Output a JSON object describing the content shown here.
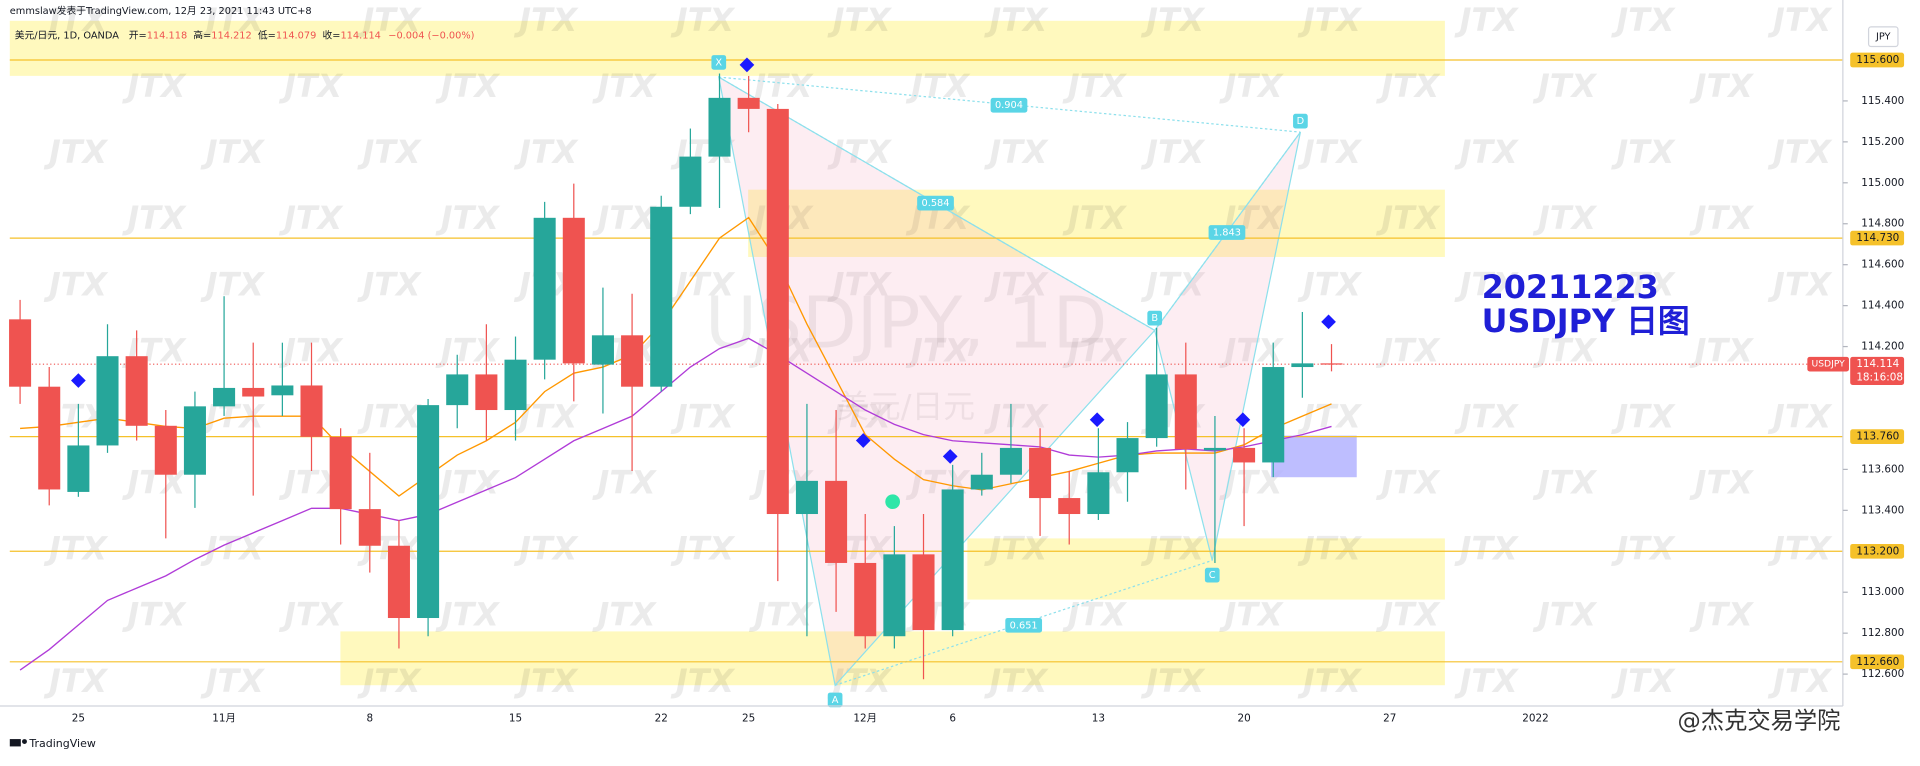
{
  "chart_data": {
    "type": "candlestick",
    "title": "USDJPY, 1D",
    "subtitle": "美元/日元",
    "categories": [
      null,
      null,
      "25",
      null,
      null,
      null,
      null,
      "11月",
      null,
      null,
      null,
      null,
      "8",
      null,
      null,
      null,
      null,
      "15",
      null,
      null,
      null,
      null,
      "22",
      null,
      null,
      "25",
      null,
      null,
      null,
      "12月",
      null,
      null,
      "6",
      null,
      null,
      null,
      null,
      "13",
      null,
      null,
      null,
      null,
      "20",
      null,
      null,
      null,
      null,
      "27",
      null,
      null,
      null,
      null,
      "2022"
    ],
    "open": [
      114.333,
      114.004,
      113.49,
      113.717,
      114.153,
      113.813,
      113.574,
      113.908,
      113.998,
      113.962,
      114.01,
      113.759,
      113.406,
      113.227,
      112.874,
      113.914,
      114.064,
      113.89,
      114.136,
      114.829,
      114.112,
      114.255,
      114.004,
      114.883,
      115.128,
      115.415,
      115.361,
      113.382,
      113.544,
      113.143,
      112.785,
      113.185,
      112.815,
      113.502,
      113.574,
      113.705,
      113.46,
      113.382,
      113.586,
      113.753,
      114.064,
      113.693,
      113.705,
      113.634,
      114.1,
      114.118,
      null,
      null,
      null,
      null,
      null,
      null,
      null
    ],
    "high": [
      114.428,
      114.1,
      113.92,
      114.309,
      114.279,
      113.89,
      113.98,
      114.446,
      114.219,
      114.219,
      114.219,
      113.801,
      113.681,
      113.353,
      113.944,
      114.16,
      114.309,
      114.249,
      114.907,
      114.996,
      114.488,
      114.458,
      114.937,
      115.265,
      115.534,
      115.522,
      115.385,
      113.92,
      113.89,
      113.382,
      113.323,
      113.382,
      113.622,
      113.681,
      113.92,
      113.801,
      113.592,
      113.801,
      113.831,
      114.291,
      114.219,
      113.861,
      113.801,
      114.219,
      114.369,
      114.212,
      null,
      null,
      null,
      null,
      null,
      null,
      null
    ],
    "low": [
      113.92,
      113.424,
      113.466,
      113.681,
      113.741,
      113.263,
      113.412,
      113.861,
      113.472,
      113.861,
      113.592,
      113.233,
      113.096,
      112.725,
      112.785,
      113.801,
      113.741,
      113.741,
      114.04,
      113.932,
      113.873,
      113.592,
      113.98,
      114.847,
      114.877,
      115.247,
      113.054,
      112.785,
      112.904,
      112.725,
      112.725,
      112.575,
      112.785,
      113.472,
      113.532,
      113.275,
      113.233,
      113.353,
      113.442,
      113.711,
      113.502,
      113.143,
      113.323,
      113.562,
      113.95,
      114.079,
      null,
      null,
      null,
      null,
      null,
      null,
      null
    ],
    "close": [
      114.004,
      113.502,
      113.717,
      114.153,
      113.813,
      113.574,
      113.908,
      113.998,
      113.956,
      114.01,
      113.759,
      113.406,
      113.227,
      112.874,
      113.914,
      114.064,
      113.89,
      114.136,
      114.829,
      114.118,
      114.255,
      114.004,
      114.883,
      115.128,
      115.415,
      115.361,
      113.382,
      113.544,
      113.143,
      112.785,
      113.185,
      112.815,
      113.502,
      113.574,
      113.705,
      113.46,
      113.382,
      113.586,
      113.753,
      114.064,
      113.699,
      113.705,
      113.634,
      114.1,
      114.118,
      114.114,
      null,
      null,
      null,
      null,
      null,
      null,
      null
    ],
    "up_color": "#26a69a",
    "down_color": "#ef5350",
    "lines": [
      {
        "color": "#ff9800",
        "values": [
          113.8,
          113.81,
          113.83,
          113.85,
          113.83,
          113.81,
          113.8,
          113.85,
          113.86,
          113.86,
          113.86,
          113.71,
          113.59,
          113.47,
          113.57,
          113.67,
          113.74,
          113.83,
          113.98,
          114.07,
          114.1,
          114.16,
          114.31,
          114.52,
          114.73,
          114.83,
          114.61,
          114.31,
          114.04,
          113.77,
          113.65,
          113.55,
          113.52,
          113.5,
          113.53,
          113.56,
          113.59,
          113.63,
          113.67,
          113.68,
          113.68,
          113.68,
          113.72,
          113.8,
          113.86,
          113.92,
          null,
          null,
          null,
          null,
          null,
          null,
          null
        ]
      },
      {
        "color": "#b03cd8",
        "values": [
          112.62,
          112.72,
          112.84,
          112.96,
          113.02,
          113.08,
          113.16,
          113.23,
          113.29,
          113.35,
          113.41,
          113.41,
          113.38,
          113.35,
          113.38,
          113.44,
          113.5,
          113.56,
          113.65,
          113.74,
          113.8,
          113.86,
          113.98,
          114.1,
          114.19,
          114.24,
          114.16,
          114.07,
          113.98,
          113.89,
          113.82,
          113.77,
          113.74,
          113.73,
          113.72,
          113.71,
          113.67,
          113.66,
          113.67,
          113.69,
          113.7,
          113.69,
          113.71,
          113.74,
          113.77,
          113.81,
          null,
          null,
          null,
          null,
          null,
          null,
          null
        ]
      }
    ],
    "ylim": [
      112.444,
      115.893
    ],
    "yticks": [
      {
        "value": 112.6,
        "label": "112.600"
      },
      {
        "value": 112.8,
        "label": "112.800"
      },
      {
        "value": 113,
        "label": "113.000"
      },
      {
        "value": 113.4,
        "label": "113.400"
      },
      {
        "value": 113.6,
        "label": "113.600"
      },
      {
        "value": 114.2,
        "label": "114.200"
      },
      {
        "value": 114.4,
        "label": "114.400"
      },
      {
        "value": 114.6,
        "label": "114.600"
      },
      {
        "value": 114.8,
        "label": "114.800"
      },
      {
        "value": 115,
        "label": "115.000"
      },
      {
        "value": 115.2,
        "label": "115.200"
      },
      {
        "value": 115.4,
        "label": "115.400"
      }
    ],
    "grid": false,
    "levels": [
      {
        "value": 115.6,
        "label": "115.600"
      },
      {
        "value": 114.73,
        "label": "114.730"
      },
      {
        "value": 113.76,
        "label": "113.760"
      },
      {
        "value": 113.2,
        "label": "113.200"
      },
      {
        "value": 112.66,
        "label": "112.660"
      }
    ],
    "level_color": "#f5c12a",
    "last_price": {
      "symbol": "USDJPY",
      "value": 114.114,
      "label": "114.114",
      "countdown": "18:16:08",
      "color": "#ef5350"
    },
    "annotation": [
      "20211223",
      "USDJPY 日图"
    ]
  },
  "header": {
    "author_line": "emmslaw发表于TradingView.com, 12月 23, 2021 11:43 UTC+8",
    "symbol": "美元/日元, 1D, OANDA",
    "ohlc": [
      {
        "key": "开=",
        "value": "114.118"
      },
      {
        "key": "高=",
        "value": "114.212"
      },
      {
        "key": "低=",
        "value": "114.079"
      },
      {
        "key": "收=",
        "value": "114.114"
      }
    ],
    "change": "−0.004 (−0.00%)"
  },
  "pattern": {
    "points": [
      "X",
      "A",
      "B",
      "C",
      "D"
    ],
    "ratios": [
      "0.904",
      "0.584",
      "1.843",
      "0.651"
    ]
  },
  "currency": "JPY",
  "logo": "JTX",
  "footer": {
    "brand": "TradingView",
    "watermark": "@杰克交易学院"
  }
}
